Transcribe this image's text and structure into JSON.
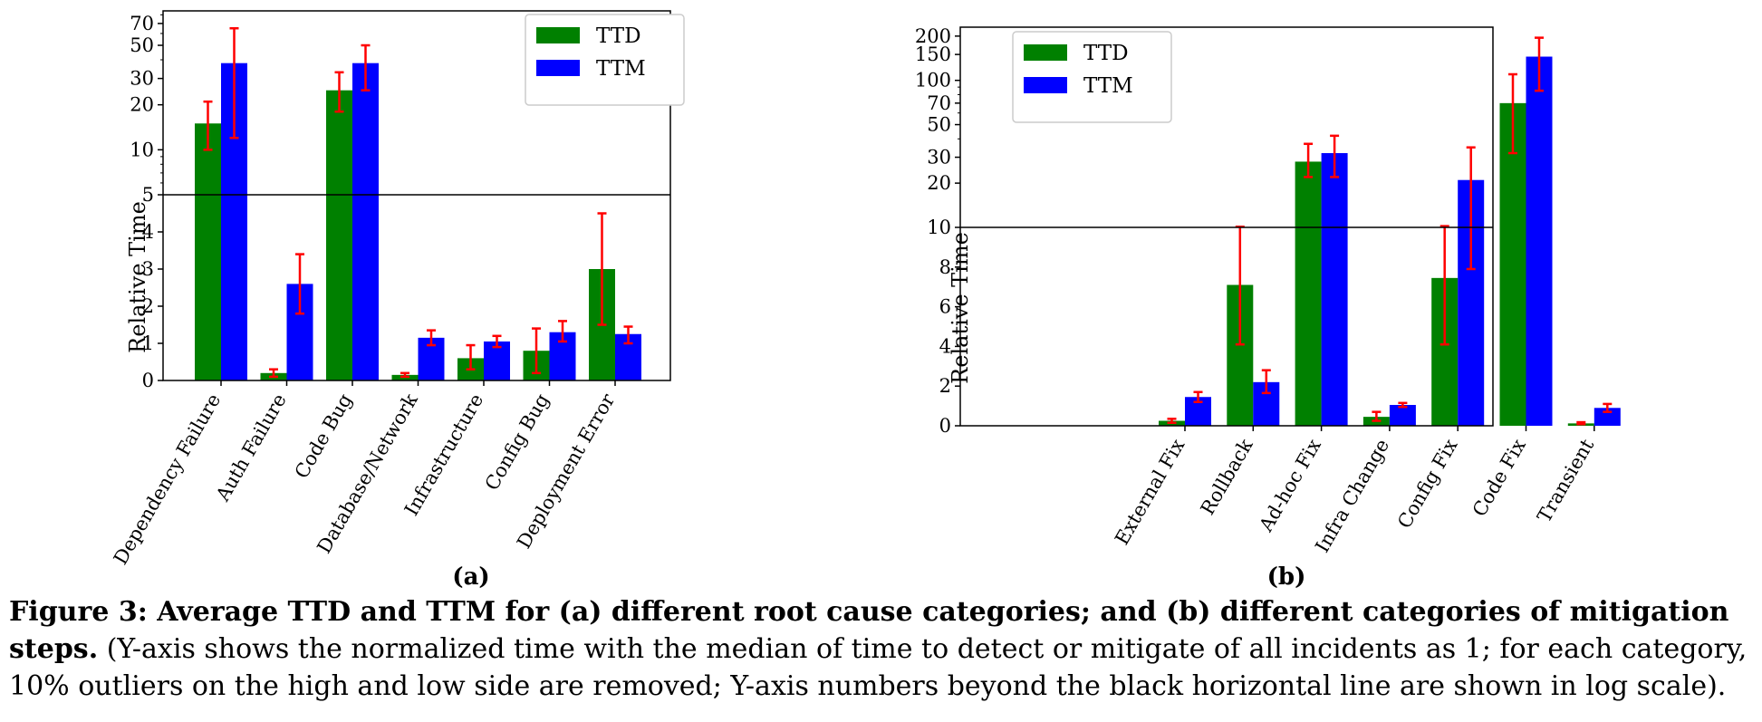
{
  "chart_data": [
    {
      "type": "bar",
      "panel_label": "(a)",
      "ylabel": "Relative Time",
      "categories": [
        "Dependency Failure",
        "Auth Failure",
        "Code Bug",
        "Database/Network",
        "Infrastructure",
        "Config Bug",
        "Deployment Error"
      ],
      "series": [
        {
          "name": "TTD",
          "values": [
            15,
            0.2,
            25,
            0.15,
            0.6,
            0.8,
            3.0
          ],
          "err_low": [
            10,
            0.1,
            18,
            0.1,
            0.3,
            0.2,
            1.5
          ],
          "err_high": [
            21,
            0.3,
            33,
            0.2,
            0.95,
            1.4,
            4.5
          ]
        },
        {
          "name": "TTM",
          "values": [
            38,
            2.6,
            38,
            1.15,
            1.05,
            1.3,
            1.25
          ],
          "err_low": [
            12,
            1.8,
            25,
            0.95,
            0.9,
            1.05,
            1.0
          ],
          "err_high": [
            65,
            3.4,
            50,
            1.35,
            1.2,
            1.6,
            1.45
          ]
        }
      ],
      "linear_ticks": [
        0,
        1,
        2,
        3,
        4,
        5
      ],
      "log_ticks": [
        5,
        10,
        20,
        30,
        50,
        70
      ],
      "scale_break": 5,
      "ylim": [
        0,
        85
      ],
      "yscale": "linear below the black horizontal line, log above",
      "legend": "top-right",
      "colors": {
        "TTD": "#008000",
        "TTM": "#0000ff",
        "error": "#ff0000",
        "break_line": "#000000"
      }
    },
    {
      "type": "bar",
      "panel_label": "(b)",
      "ylabel": "Relative Time",
      "categories": [
        "External Fix",
        "Rollback",
        "Ad-hoc Fix",
        "Infra Change",
        "Config Fix",
        "Code Fix",
        "Transient"
      ],
      "series": [
        {
          "name": "TTD",
          "values": [
            0.25,
            7.1,
            28,
            0.45,
            7.45,
            70,
            0.12
          ],
          "err_low": [
            0.15,
            4.1,
            22,
            0.25,
            4.1,
            32,
            0.08
          ],
          "err_high": [
            0.35,
            10.1,
            37,
            0.7,
            10.2,
            110,
            0.18
          ]
        },
        {
          "name": "TTM",
          "values": [
            1.45,
            2.2,
            32,
            1.05,
            21,
            145,
            0.9
          ],
          "err_low": [
            1.2,
            1.65,
            22,
            0.95,
            7.9,
            85,
            0.7
          ],
          "err_high": [
            1.7,
            2.8,
            42,
            1.15,
            35,
            195,
            1.1
          ]
        }
      ],
      "linear_ticks": [
        0,
        2,
        4,
        6,
        8,
        10
      ],
      "log_ticks": [
        10,
        20,
        30,
        50,
        70,
        100,
        150,
        200
      ],
      "scale_break": 10,
      "ylim": [
        0,
        230
      ],
      "yscale": "linear below the black horizontal line, log above",
      "legend": "top-left",
      "colors": {
        "TTD": "#008000",
        "TTM": "#0000ff",
        "error": "#ff0000",
        "break_line": "#000000"
      }
    }
  ],
  "caption": {
    "bold": "Figure 3: Average TTD and TTM for (a) different root cause categories; and (b) different categories of mitigation steps.",
    "normal": " (Y-axis shows the normalized time with the median of time to detect or mitigate of all incidents as 1; for each category, 10% outliers on the high and low side are removed; Y-axis numbers beyond the black horizontal line are shown in log scale)."
  }
}
